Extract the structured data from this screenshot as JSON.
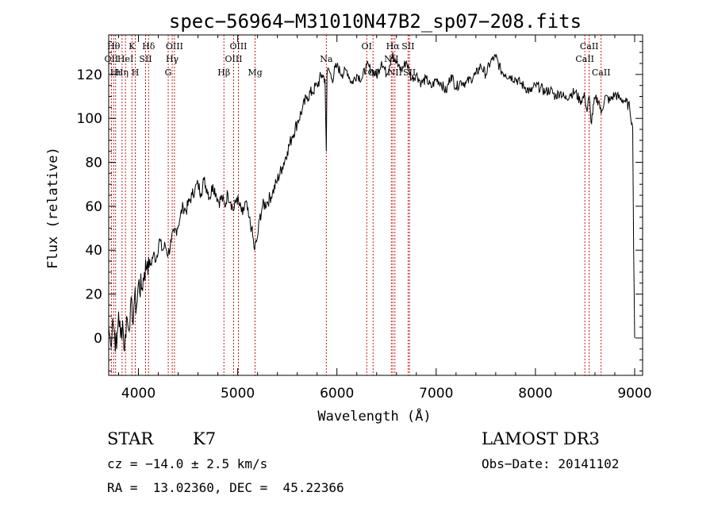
{
  "chart_data": {
    "type": "line",
    "title": "spec−56964−M31010N47B2_sp07−208.fits",
    "xlabel": "Wavelength (Å)",
    "ylabel": "Flux (relative)",
    "xlim": [
      3700,
      9080
    ],
    "ylim": [
      -17,
      138
    ],
    "xticks": [
      4000,
      5000,
      6000,
      7000,
      8000,
      9000
    ],
    "yticks": [
      0,
      20,
      40,
      60,
      80,
      100,
      120
    ],
    "grid": false,
    "series": [
      {
        "name": "spectrum",
        "x": [
          3700,
          3720,
          3740,
          3760,
          3780,
          3800,
          3820,
          3840,
          3860,
          3880,
          3900,
          3920,
          3940,
          3960,
          3980,
          4000,
          4030,
          4060,
          4090,
          4120,
          4150,
          4180,
          4210,
          4240,
          4270,
          4300,
          4330,
          4360,
          4390,
          4420,
          4450,
          4480,
          4510,
          4540,
          4570,
          4600,
          4630,
          4660,
          4690,
          4720,
          4750,
          4780,
          4810,
          4840,
          4870,
          4900,
          4930,
          4960,
          4990,
          5020,
          5050,
          5080,
          5110,
          5140,
          5170,
          5190,
          5200,
          5220,
          5250,
          5300,
          5350,
          5400,
          5450,
          5500,
          5550,
          5600,
          5650,
          5700,
          5750,
          5800,
          5850,
          5880,
          5893,
          5900,
          5920,
          5950,
          6000,
          6050,
          6100,
          6150,
          6200,
          6250,
          6300,
          6350,
          6400,
          6450,
          6500,
          6550,
          6563,
          6580,
          6620,
          6650,
          6700,
          6750,
          6800,
          6850,
          6900,
          6950,
          7000,
          7050,
          7100,
          7150,
          7200,
          7250,
          7300,
          7350,
          7400,
          7450,
          7500,
          7550,
          7600,
          7650,
          7700,
          7750,
          7800,
          7850,
          7900,
          7950,
          8000,
          8050,
          8100,
          8150,
          8200,
          8250,
          8300,
          8350,
          8400,
          8450,
          8498,
          8520,
          8542,
          8560,
          8600,
          8640,
          8662,
          8700,
          8750,
          8800,
          8850,
          8900,
          8950,
          8980,
          8990,
          9000
        ],
        "values": [
          5,
          -3,
          9,
          2,
          -5,
          12,
          0,
          8,
          -6,
          10,
          4,
          15,
          8,
          18,
          14,
          25,
          22,
          30,
          35,
          33,
          38,
          36,
          45,
          40,
          42,
          38,
          44,
          48,
          50,
          55,
          60,
          58,
          62,
          65,
          68,
          70,
          66,
          72,
          68,
          64,
          70,
          66,
          62,
          64,
          60,
          66,
          62,
          58,
          64,
          60,
          56,
          62,
          55,
          50,
          40,
          44,
          46,
          54,
          60,
          62,
          66,
          72,
          78,
          85,
          92,
          98,
          104,
          110,
          112,
          115,
          120,
          118,
          85,
          120,
          122,
          118,
          124,
          120,
          122,
          116,
          120,
          118,
          124,
          122,
          119,
          126,
          120,
          128,
          130,
          126,
          124,
          122,
          126,
          118,
          120,
          116,
          118,
          114,
          118,
          116,
          112,
          120,
          114,
          117,
          116,
          118,
          120,
          124,
          120,
          126,
          128,
          122,
          120,
          119,
          118,
          116,
          114,
          112,
          115,
          114,
          112,
          113,
          110,
          112,
          109,
          111,
          112,
          108,
          110,
          103,
          110,
          98,
          109,
          108,
          102,
          110,
          108,
          111,
          109,
          108,
          105,
          96,
          40,
          0
        ]
      }
    ],
    "lines": [
      {
        "x": 3727,
        "label": "OII",
        "row": 2
      },
      {
        "x": 3750,
        "label": "Hθ",
        "row": 1
      },
      {
        "x": 3770,
        "label": "Hι",
        "row": 3
      },
      {
        "x": 3835,
        "label": "Hη",
        "row": 3
      },
      {
        "x": 3869,
        "label": "HeI",
        "row": 2
      },
      {
        "x": 3934,
        "label": "K",
        "row": 1
      },
      {
        "x": 3968,
        "label": "H",
        "row": 3
      },
      {
        "x": 4072,
        "label": "SII",
        "row": 2
      },
      {
        "x": 4102,
        "label": "Hδ",
        "row": 1
      },
      {
        "x": 4300,
        "label": "G",
        "row": 3
      },
      {
        "x": 4340,
        "label": "Hγ",
        "row": 2
      },
      {
        "x": 4363,
        "label": "OIII",
        "row": 1
      },
      {
        "x": 4861,
        "label": "Hβ",
        "row": 3
      },
      {
        "x": 4959,
        "label": "OIII",
        "row": 2
      },
      {
        "x": 5007,
        "label": "OIII",
        "row": 1
      },
      {
        "x": 5175,
        "label": "Mg",
        "row": 3
      },
      {
        "x": 5893,
        "label": "Na",
        "row": 2
      },
      {
        "x": 6300,
        "label": "OI",
        "row": 1
      },
      {
        "x": 6364,
        "label": "OI",
        "row": 3
      },
      {
        "x": 6548,
        "label": "NII",
        "row": 2
      },
      {
        "x": 6563,
        "label": "Hα",
        "row": 1
      },
      {
        "x": 6584,
        "label": "NII",
        "row": 3
      },
      {
        "x": 6717,
        "label": "SII",
        "row": 1
      },
      {
        "x": 6731,
        "label": "SII",
        "row": 3
      },
      {
        "x": 8498,
        "label": "CaII",
        "row": 2
      },
      {
        "x": 8542,
        "label": "CaII",
        "row": 1
      },
      {
        "x": 8662,
        "label": "CaII",
        "row": 3
      }
    ]
  },
  "info": {
    "class": "STAR",
    "subclass": "K7",
    "survey": "LAMOST DR3",
    "cz": "cz = −14.0 ± 2.5 km/s",
    "obs_date": "Obs−Date: 20141102",
    "radec": "RA =  13.02360, DEC =  45.22366"
  }
}
